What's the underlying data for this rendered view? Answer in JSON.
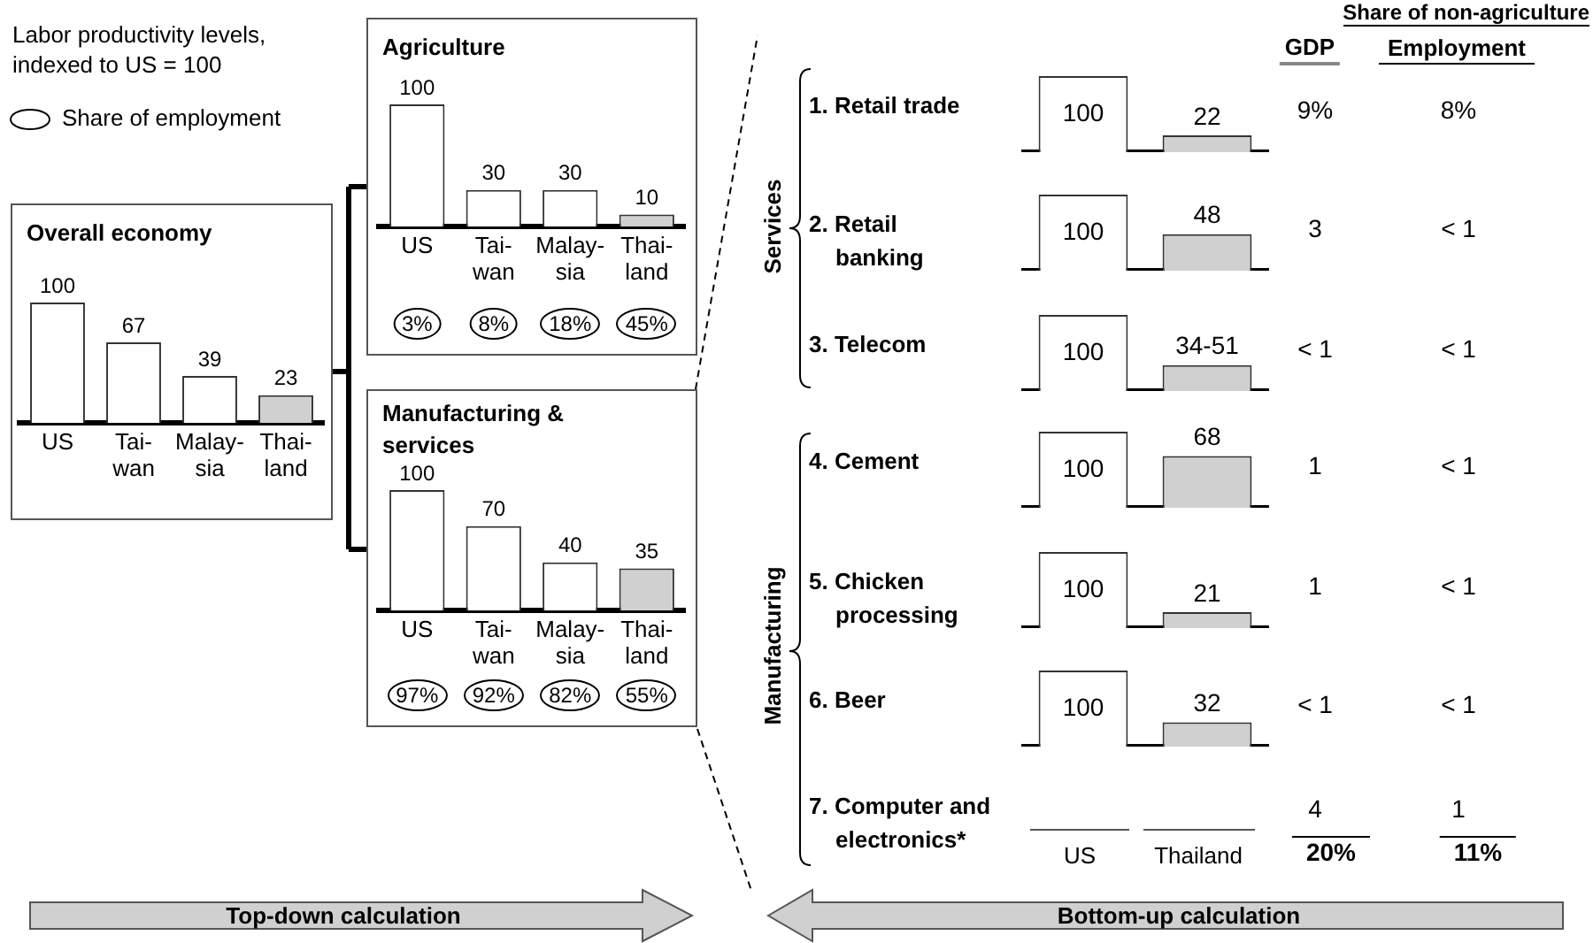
{
  "chart_data": [
    {
      "type": "other",
      "title": "Labor productivity levels,\nindexed to US = 100",
      "annotations": [
        "Share of employment"
      ]
    },
    {
      "type": "bar",
      "title": "Overall economy",
      "categories": [
        "US",
        "Tai-\nwan",
        "Malay-\nsia",
        "Thai-\nland"
      ],
      "values": [
        100,
        67,
        39,
        23
      ],
      "colors": [
        "#ffffff",
        "#ffffff",
        "#ffffff",
        "#d0d0d0"
      ],
      "data_labels": true
    },
    {
      "type": "bar",
      "title": "Agriculture",
      "categories": [
        "US",
        "Tai-\nwan",
        "Malay-\nsia",
        "Thai-\nland"
      ],
      "values": [
        100,
        30,
        30,
        10
      ],
      "colors": [
        "#ffffff",
        "#ffffff",
        "#ffffff",
        "#d0d0d0"
      ],
      "data_labels": true,
      "annotations": [
        "3%",
        "8%",
        "18%",
        "45%"
      ]
    },
    {
      "type": "bar",
      "title": "Manufacturing &\nservices",
      "categories": [
        "US",
        "Tai-\nwan",
        "Malay-\nsia",
        "Thai-\nland"
      ],
      "values": [
        100,
        70,
        40,
        35
      ],
      "colors": [
        "#ffffff",
        "#ffffff",
        "#ffffff",
        "#d0d0d0"
      ],
      "data_labels": true,
      "annotations": [
        "97%",
        "92%",
        "82%",
        "55%"
      ]
    },
    {
      "type": "other",
      "title": "Share of non-agriculture",
      "annotations": [
        "GDP",
        "Employment",
        "Services",
        "Manufacturing",
        "20%",
        "11%"
      ]
    },
    {
      "type": "bar",
      "title": "1. Retail trade",
      "categories": [
        null,
        null
      ],
      "values": [
        100,
        22
      ],
      "colors": [
        "#ffffff",
        "#d0d0d0"
      ],
      "data_labels": true,
      "annotations": [
        "9%",
        "8%"
      ]
    },
    {
      "type": "bar",
      "title": "2. Retail\nbanking",
      "categories": [
        null,
        null
      ],
      "values": [
        100,
        48
      ],
      "colors": [
        "#ffffff",
        "#d0d0d0"
      ],
      "data_labels": true,
      "annotations": [
        "3",
        "< 1"
      ]
    },
    {
      "type": "bar",
      "title": "3. Telecom",
      "categories": [
        null,
        null
      ],
      "values": [
        100,
        34
      ],
      "colors": [
        "#ffffff",
        "#d0d0d0"
      ],
      "value_labels": [
        "100",
        "34-51"
      ],
      "annotations": [
        "< 1",
        "< 1"
      ]
    },
    {
      "type": "bar",
      "title": "4. Cement",
      "categories": [
        null,
        null
      ],
      "values": [
        100,
        68
      ],
      "colors": [
        "#ffffff",
        "#d0d0d0"
      ],
      "data_labels": true,
      "annotations": [
        "1",
        "< 1"
      ]
    },
    {
      "type": "bar",
      "title": "5. Chicken\nprocessing",
      "categories": [
        null,
        null
      ],
      "values": [
        100,
        21
      ],
      "colors": [
        "#ffffff",
        "#d0d0d0"
      ],
      "data_labels": true,
      "annotations": [
        "1",
        "< 1"
      ]
    },
    {
      "type": "bar",
      "title": "6. Beer",
      "categories": [
        null,
        null
      ],
      "values": [
        100,
        32
      ],
      "colors": [
        "#ffffff",
        "#d0d0d0"
      ],
      "data_labels": true,
      "annotations": [
        "< 1",
        "< 1"
      ]
    },
    {
      "type": "other",
      "title": "7. Computer and\nelectronics*",
      "annotations": [
        "US",
        "Thailand",
        "4",
        "1"
      ]
    },
    {
      "type": "other",
      "annotations": [
        "Top-down calculation",
        "Bottom-up calculation"
      ]
    }
  ]
}
